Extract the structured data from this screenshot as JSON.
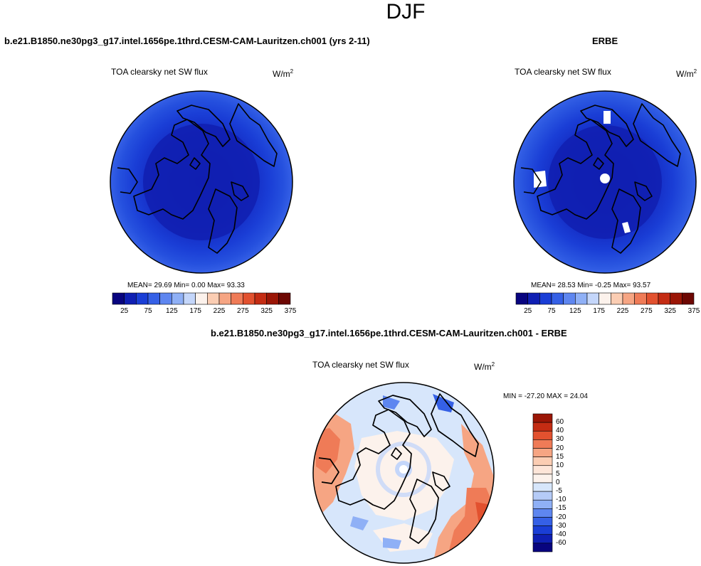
{
  "page_title": "DJF",
  "panels": [
    {
      "case_title": "b.e21.B1850.ne30pg3_g17.intel.1656pe.1thrd.CESM-CAM-Lauritzen.ch001 (yrs 2-11)",
      "variable": "TOA clearsky net SW flux",
      "units": "W/m",
      "units_sup": "2",
      "stats": "MEAN=  29.69  Min=   0.00  Max=  93.33",
      "colorbar_ticks": [
        "25",
        "75",
        "125",
        "175",
        "225",
        "275",
        "325",
        "375"
      ]
    },
    {
      "case_title": "ERBE",
      "variable": "TOA clearsky net SW flux",
      "units": "W/m",
      "units_sup": "2",
      "stats": "MEAN=  28.53  Min=  -0.25  Max=  93.57",
      "colorbar_ticks": [
        "25",
        "75",
        "125",
        "175",
        "225",
        "275",
        "325",
        "375"
      ]
    },
    {
      "case_title": "b.e21.B1850.ne30pg3_g17.intel.1656pe.1thrd.CESM-CAM-Lauritzen.ch001 - ERBE",
      "variable": "TOA clearsky net SW flux",
      "units": "W/m",
      "units_sup": "2",
      "stats": "MIN = -27.20 MAX =  24.04",
      "colorbar_ticks": [
        "60",
        "40",
        "30",
        "20",
        "15",
        "10",
        "5",
        "0",
        "-5",
        "-10",
        "-15",
        "-20",
        "-30",
        "-40",
        "-60"
      ]
    }
  ],
  "colors": {
    "abs_scale": [
      "#08047f",
      "#0f1fb3",
      "#1a3ed6",
      "#3560e6",
      "#5e86f0",
      "#8fb0f6",
      "#c4d6fa",
      "#fcf2ec",
      "#fbcdb3",
      "#f6a583",
      "#ef7b57",
      "#e2512f",
      "#c42c13",
      "#9b1606",
      "#6d0703"
    ],
    "diff_scale": [
      "#9b1606",
      "#c42c13",
      "#e2512f",
      "#ef7b57",
      "#f6a583",
      "#fbcdb3",
      "#fde5d8",
      "#fcf2ec",
      "#d7e6fb",
      "#b5cbf7",
      "#8fb0f6",
      "#5e86f0",
      "#3560e6",
      "#1a3ed6",
      "#0f1fb3",
      "#08047f"
    ],
    "coastline": "#000000"
  }
}
